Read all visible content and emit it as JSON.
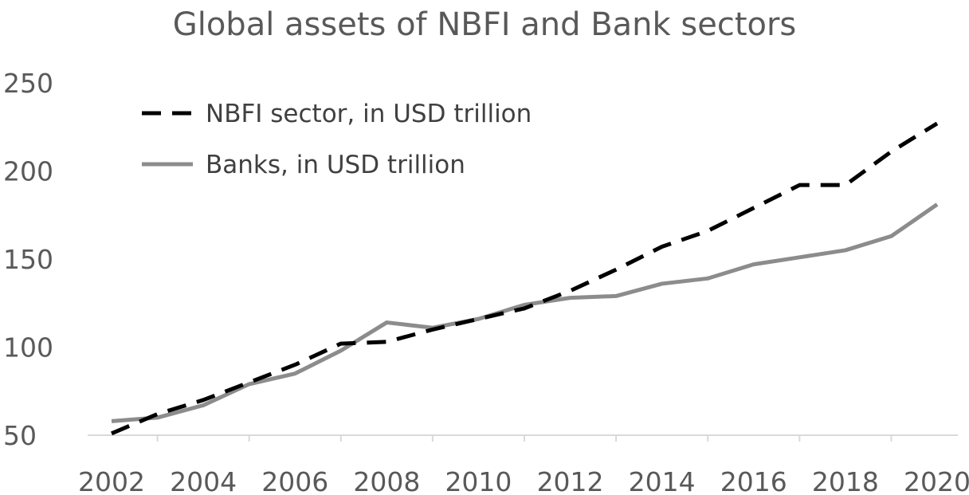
{
  "chart_data": {
    "type": "line",
    "title": "Global assets of NBFI and Bank sectors",
    "xlabel": "",
    "ylabel": "",
    "x": [
      2002,
      2003,
      2004,
      2005,
      2006,
      2007,
      2008,
      2009,
      2010,
      2011,
      2012,
      2013,
      2014,
      2015,
      2016,
      2017,
      2018,
      2019,
      2020
    ],
    "x_tick_labels": [
      "2002",
      "2004",
      "2006",
      "2008",
      "2010",
      "2012",
      "2014",
      "2016",
      "2018",
      "2020"
    ],
    "y_tick_labels": [
      "50",
      "100",
      "150",
      "200",
      "250"
    ],
    "ylim": [
      50,
      250
    ],
    "grid": false,
    "legend_position": "top-left",
    "series": [
      {
        "name": "NBFI sector, in USD trillion",
        "style": "dashed",
        "color": "#000000",
        "values": [
          51,
          62,
          70,
          80,
          90,
          102,
          103,
          110,
          116,
          122,
          132,
          144,
          157,
          166,
          179,
          192,
          192,
          211,
          227
        ]
      },
      {
        "name": "Banks, in USD trillion",
        "style": "solid",
        "color": "#8c8c8c",
        "values": [
          58,
          60,
          67,
          79,
          85,
          98,
          114,
          111,
          116,
          124,
          128,
          129,
          136,
          139,
          147,
          151,
          155,
          163,
          181
        ]
      }
    ]
  }
}
